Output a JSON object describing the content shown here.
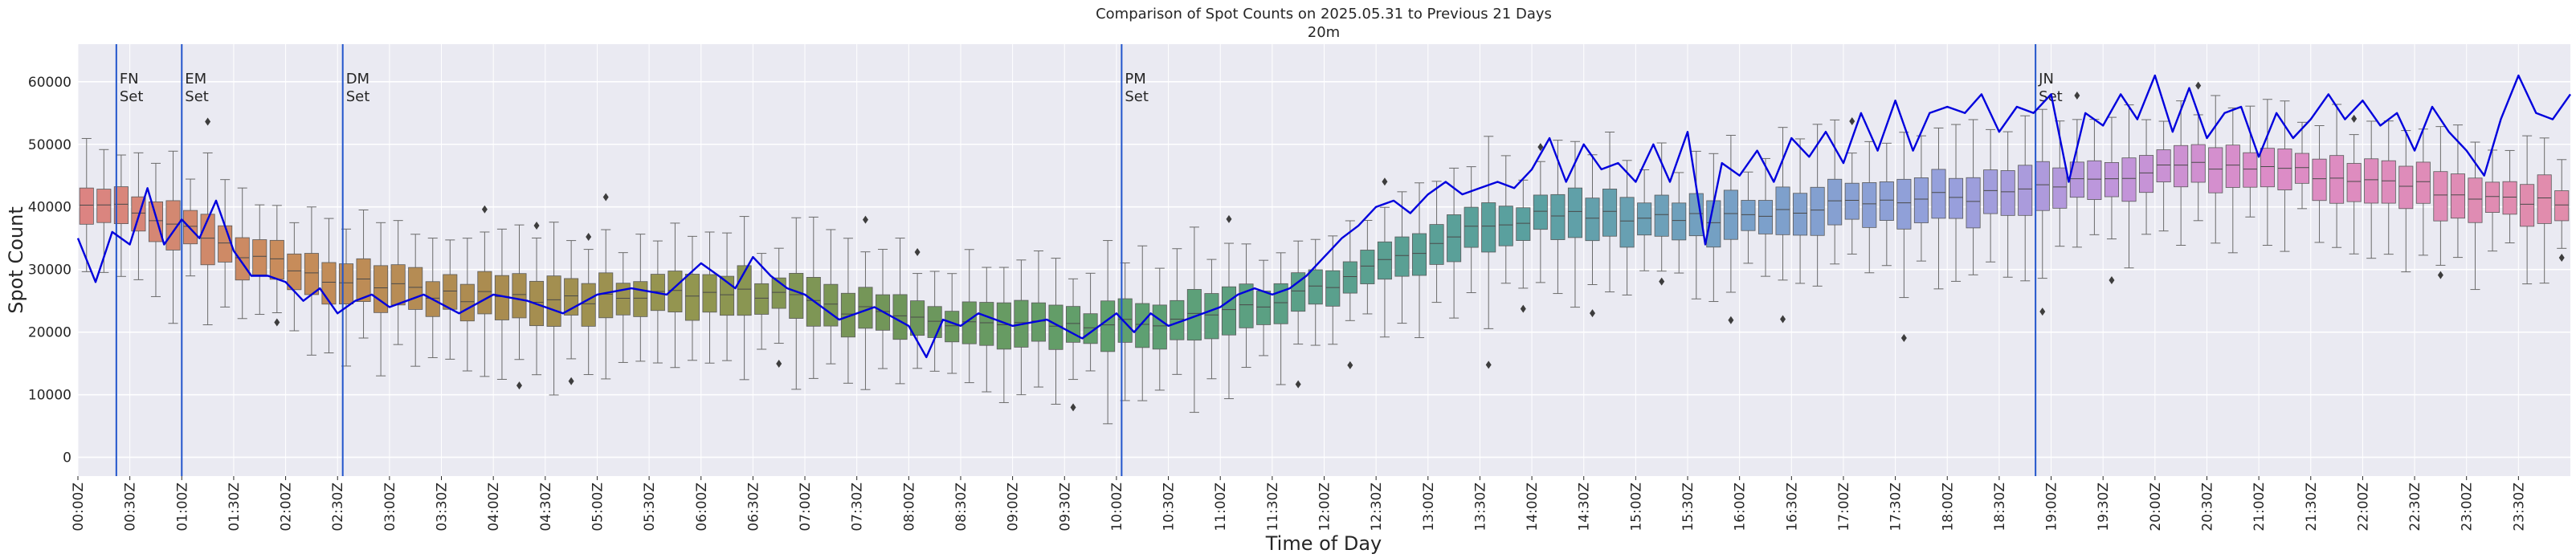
{
  "chart_data": {
    "type": "box",
    "title": "Comparison of Spot Counts on 2025.05.31 to Previous 21 Days",
    "subtitle": "20m",
    "xlabel": "Time of Day",
    "ylabel": "Spot Count",
    "ylim": [
      -3000,
      66000
    ],
    "yticks": [
      0,
      10000,
      20000,
      30000,
      40000,
      50000,
      60000
    ],
    "grid": true,
    "slots_per_hour": 6,
    "slot_count": 144,
    "xtick_labels": [
      "00:00Z",
      "00:30Z",
      "01:00Z",
      "01:30Z",
      "02:00Z",
      "02:30Z",
      "03:00Z",
      "03:30Z",
      "04:00Z",
      "04:30Z",
      "05:00Z",
      "05:30Z",
      "06:00Z",
      "06:30Z",
      "07:00Z",
      "07:30Z",
      "08:00Z",
      "08:30Z",
      "09:00Z",
      "09:30Z",
      "10:00Z",
      "10:30Z",
      "11:00Z",
      "11:30Z",
      "12:00Z",
      "12:30Z",
      "13:00Z",
      "13:30Z",
      "14:00Z",
      "14:30Z",
      "15:00Z",
      "15:30Z",
      "16:00Z",
      "16:30Z",
      "17:00Z",
      "17:30Z",
      "18:00Z",
      "18:30Z",
      "19:00Z",
      "19:30Z",
      "20:00Z",
      "20:30Z",
      "21:00Z",
      "21:30Z",
      "22:00Z",
      "22:30Z",
      "23:00Z",
      "23:30Z"
    ],
    "median_anchors": {
      "hours": [
        0,
        0.5,
        1,
        1.5,
        2,
        2.5,
        3,
        3.5,
        4,
        4.5,
        5,
        5.5,
        6,
        6.5,
        7,
        7.5,
        8,
        8.5,
        9,
        9.5,
        10,
        10.5,
        11,
        11.5,
        12,
        12.5,
        13,
        13.5,
        14,
        14.5,
        15,
        15.5,
        16,
        16.5,
        17,
        17.5,
        18,
        18.5,
        19,
        19.5,
        20,
        20.5,
        21,
        21.5,
        22,
        22.5,
        23,
        23.5,
        24
      ],
      "values": [
        40000,
        40000,
        37000,
        33000,
        30500,
        28500,
        27000,
        26000,
        25500,
        25000,
        25500,
        26000,
        26500,
        26000,
        25000,
        23500,
        22000,
        21500,
        21000,
        21000,
        21000,
        22000,
        23500,
        25000,
        27500,
        30500,
        34000,
        36500,
        38500,
        39000,
        38500,
        38000,
        38500,
        39500,
        40500,
        41000,
        41500,
        42000,
        43000,
        44500,
        46000,
        46500,
        46000,
        45500,
        44500,
        43500,
        42000,
        41000,
        41000
      ]
    },
    "series": [
      {
        "name": "2025.05.31",
        "color": "#0000dd",
        "hours": [
          0,
          0.17,
          0.33,
          0.5,
          0.67,
          0.83,
          1,
          1.17,
          1.33,
          1.5,
          1.67,
          1.83,
          2,
          2.17,
          2.33,
          2.5,
          2.67,
          2.83,
          3,
          3.33,
          3.67,
          4,
          4.33,
          4.67,
          5,
          5.33,
          5.67,
          6,
          6.17,
          6.33,
          6.5,
          6.67,
          6.83,
          7,
          7.33,
          7.67,
          8,
          8.17,
          8.33,
          8.5,
          8.67,
          9,
          9.33,
          9.67,
          10,
          10.17,
          10.33,
          10.5,
          10.67,
          11,
          11.17,
          11.33,
          11.5,
          11.67,
          11.83,
          12,
          12.17,
          12.33,
          12.5,
          12.67,
          12.83,
          13,
          13.17,
          13.33,
          13.5,
          13.67,
          13.83,
          14,
          14.17,
          14.33,
          14.5,
          14.67,
          14.83,
          15,
          15.17,
          15.33,
          15.5,
          15.67,
          15.83,
          16,
          16.17,
          16.33,
          16.5,
          16.67,
          16.83,
          17,
          17.17,
          17.33,
          17.5,
          17.67,
          17.83,
          18,
          18.17,
          18.33,
          18.5,
          18.67,
          18.83,
          19,
          19.17,
          19.33,
          19.5,
          19.67,
          19.83,
          20,
          20.17,
          20.33,
          20.5,
          20.67,
          20.83,
          21,
          21.17,
          21.33,
          21.5,
          21.67,
          21.83,
          22,
          22.17,
          22.33,
          22.5,
          22.67,
          22.83,
          23,
          23.17,
          23.33,
          23.5,
          23.67,
          23.83,
          24
        ],
        "values": [
          35000,
          28000,
          36000,
          34000,
          43000,
          34000,
          38000,
          35000,
          41000,
          33000,
          29000,
          29000,
          28000,
          25000,
          27000,
          23000,
          25000,
          26000,
          24000,
          26000,
          23000,
          26000,
          25000,
          23000,
          26000,
          27000,
          26000,
          31000,
          29000,
          27000,
          32000,
          29000,
          27000,
          26000,
          22000,
          24000,
          21000,
          16000,
          22000,
          21000,
          23000,
          21000,
          22000,
          19000,
          23000,
          20000,
          23000,
          21000,
          22000,
          24000,
          26000,
          27000,
          26000,
          27000,
          29000,
          32000,
          35000,
          37000,
          40000,
          41000,
          39000,
          42000,
          44000,
          42000,
          43000,
          44000,
          43000,
          46000,
          51000,
          44000,
          50000,
          46000,
          47000,
          44000,
          50000,
          44000,
          52000,
          34000,
          47000,
          45000,
          49000,
          44000,
          51000,
          48000,
          52000,
          47000,
          55000,
          49000,
          57000,
          49000,
          55000,
          56000,
          55000,
          58000,
          52000,
          56000,
          55000,
          58000,
          44000,
          55000,
          53000,
          58000,
          54000,
          61000,
          52000,
          59000,
          51000,
          55000,
          56000,
          48000,
          55000,
          51000,
          54000,
          58000,
          54000,
          57000,
          53000,
          55000,
          49000,
          56000,
          52000,
          49000,
          45000,
          54000,
          61000,
          55000,
          54000,
          58000
        ]
      }
    ],
    "annotations": [
      {
        "hour": 0.37,
        "line1": "FN",
        "line2": "Set"
      },
      {
        "hour": 1.0,
        "line1": "EM",
        "line2": "Set"
      },
      {
        "hour": 2.55,
        "line1": "DM",
        "line2": "Set"
      },
      {
        "hour": 10.05,
        "line1": "PM",
        "line2": "Set"
      }
    ],
    "annotation_jn": {
      "hour": 18.85,
      "line1": "JN",
      "line2": "Set"
    },
    "annotation_color": "#2255cc",
    "series_color": "#0000dd",
    "background_color": "#eaeaf2"
  }
}
